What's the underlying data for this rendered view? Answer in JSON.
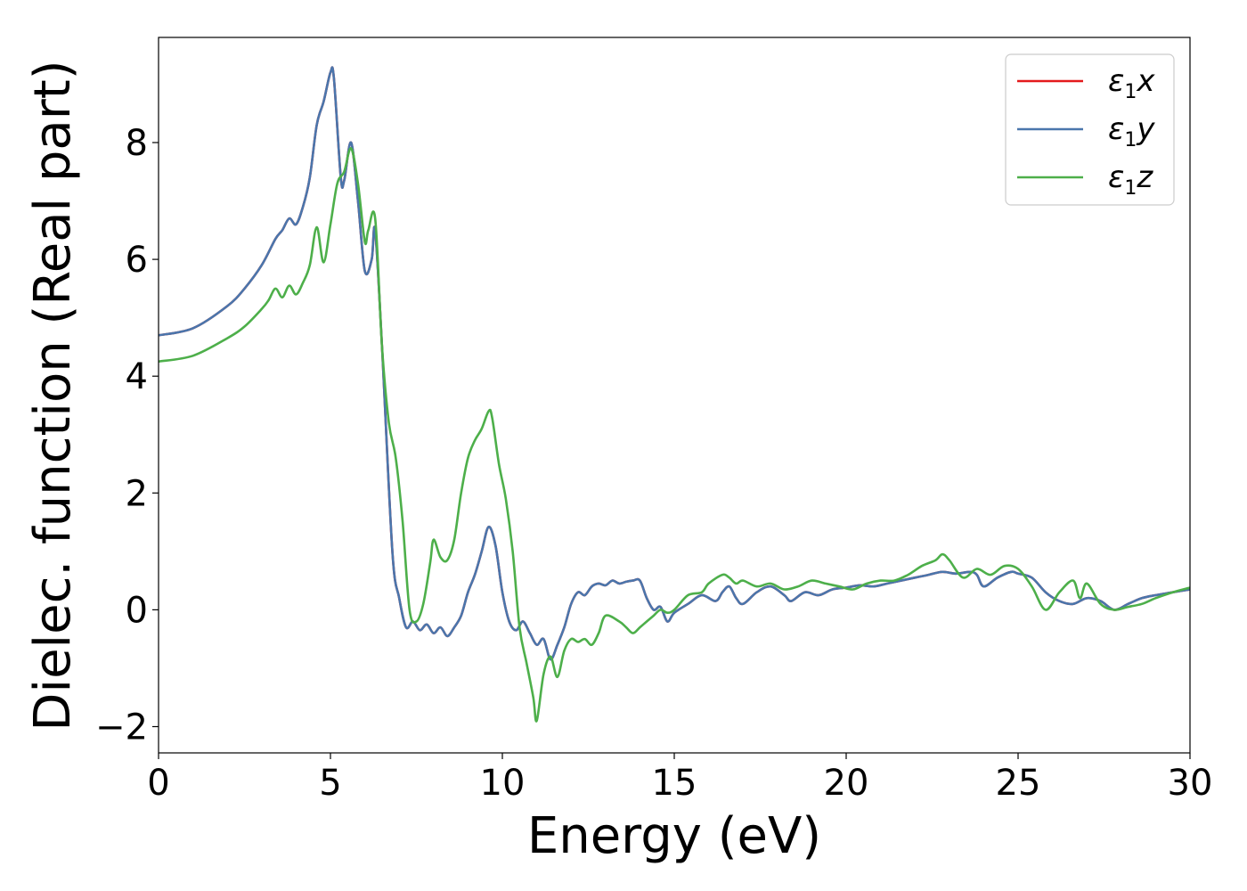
{
  "chart_data": {
    "type": "line",
    "title": "",
    "xlabel": "Energy (eV)",
    "ylabel": "Dielec. function (Real part)",
    "xlim": [
      0,
      30
    ],
    "ylim": [
      -2.45,
      9.8
    ],
    "grid": false,
    "legend_position": "top-right",
    "xticks": [
      {
        "value": 0,
        "label": "0"
      },
      {
        "value": 5,
        "label": "5"
      },
      {
        "value": 10,
        "label": "10"
      },
      {
        "value": 15,
        "label": "15"
      },
      {
        "value": 20,
        "label": "20"
      },
      {
        "value": 25,
        "label": "25"
      },
      {
        "value": 30,
        "label": "30"
      }
    ],
    "yticks": [
      {
        "value": -2,
        "label": "−2"
      },
      {
        "value": 0,
        "label": "0"
      },
      {
        "value": 2,
        "label": "2"
      },
      {
        "value": 4,
        "label": "4"
      },
      {
        "value": 6,
        "label": "6"
      },
      {
        "value": 8,
        "label": "8"
      }
    ],
    "series": [
      {
        "name": "ε1x",
        "legend_base": "ε",
        "legend_sub": "1",
        "legend_var": "x",
        "color": "#e41a1c",
        "x": [
          0,
          1,
          2,
          2.5,
          3,
          3.4,
          3.6,
          3.8,
          4.0,
          4.2,
          4.4,
          4.6,
          4.8,
          5.0,
          5.1,
          5.3,
          5.4,
          5.6,
          5.8,
          6.0,
          6.2,
          6.3,
          6.5,
          6.8,
          7.0,
          7.2,
          7.4,
          7.6,
          7.8,
          8.0,
          8.2,
          8.4,
          8.6,
          8.8,
          9.0,
          9.2,
          9.4,
          9.6,
          9.8,
          10.0,
          10.2,
          10.4,
          10.6,
          10.8,
          11.0,
          11.2,
          11.4,
          11.6,
          11.8,
          12.0,
          12.2,
          12.4,
          12.6,
          12.8,
          13.0,
          13.2,
          13.4,
          13.6,
          13.8,
          14.0,
          14.2,
          14.4,
          14.6,
          14.8,
          15.0,
          15.4,
          15.8,
          16.2,
          16.4,
          16.6,
          16.8,
          17.0,
          17.4,
          17.8,
          18.2,
          18.4,
          18.8,
          19.2,
          19.6,
          20.0,
          20.4,
          20.8,
          21.2,
          21.6,
          22.0,
          22.4,
          22.8,
          23.2,
          23.6,
          23.8,
          24.0,
          24.4,
          24.8,
          25.0,
          25.4,
          25.8,
          26.2,
          26.6,
          27.0,
          27.4,
          27.8,
          28.2,
          28.6,
          29.0,
          29.5,
          30.0
        ],
        "values": [
          4.7,
          4.82,
          5.2,
          5.5,
          5.9,
          6.35,
          6.5,
          6.7,
          6.6,
          6.9,
          7.4,
          8.3,
          8.7,
          9.2,
          9.1,
          7.4,
          7.35,
          8.0,
          7.0,
          5.8,
          6.0,
          6.5,
          4.5,
          1.0,
          0.2,
          -0.3,
          -0.2,
          -0.35,
          -0.25,
          -0.4,
          -0.3,
          -0.45,
          -0.3,
          -0.1,
          0.3,
          0.6,
          1.0,
          1.42,
          1.1,
          0.3,
          -0.2,
          -0.35,
          -0.2,
          -0.4,
          -0.6,
          -0.5,
          -0.85,
          -0.6,
          -0.3,
          0.1,
          0.3,
          0.25,
          0.4,
          0.45,
          0.42,
          0.5,
          0.45,
          0.48,
          0.5,
          0.5,
          0.2,
          0.0,
          0.05,
          -0.2,
          -0.05,
          0.1,
          0.25,
          0.15,
          0.3,
          0.4,
          0.2,
          0.1,
          0.3,
          0.4,
          0.25,
          0.15,
          0.3,
          0.25,
          0.35,
          0.38,
          0.42,
          0.4,
          0.45,
          0.5,
          0.55,
          0.6,
          0.65,
          0.62,
          0.65,
          0.6,
          0.4,
          0.55,
          0.65,
          0.62,
          0.55,
          0.3,
          0.15,
          0.1,
          0.2,
          0.15,
          0.0,
          0.1,
          0.2,
          0.25,
          0.3,
          0.35
        ]
      },
      {
        "name": "ε1y",
        "legend_base": "ε",
        "legend_sub": "1",
        "legend_var": "y",
        "color": "#4a76ac",
        "x": [
          0,
          1,
          2,
          2.5,
          3,
          3.4,
          3.6,
          3.8,
          4.0,
          4.2,
          4.4,
          4.6,
          4.8,
          5.0,
          5.1,
          5.3,
          5.4,
          5.6,
          5.8,
          6.0,
          6.2,
          6.3,
          6.5,
          6.8,
          7.0,
          7.2,
          7.4,
          7.6,
          7.8,
          8.0,
          8.2,
          8.4,
          8.6,
          8.8,
          9.0,
          9.2,
          9.4,
          9.6,
          9.8,
          10.0,
          10.2,
          10.4,
          10.6,
          10.8,
          11.0,
          11.2,
          11.4,
          11.6,
          11.8,
          12.0,
          12.2,
          12.4,
          12.6,
          12.8,
          13.0,
          13.2,
          13.4,
          13.6,
          13.8,
          14.0,
          14.2,
          14.4,
          14.6,
          14.8,
          15.0,
          15.4,
          15.8,
          16.2,
          16.4,
          16.6,
          16.8,
          17.0,
          17.4,
          17.8,
          18.2,
          18.4,
          18.8,
          19.2,
          19.6,
          20.0,
          20.4,
          20.8,
          21.2,
          21.6,
          22.0,
          22.4,
          22.8,
          23.2,
          23.6,
          23.8,
          24.0,
          24.4,
          24.8,
          25.0,
          25.4,
          25.8,
          26.2,
          26.6,
          27.0,
          27.4,
          27.8,
          28.2,
          28.6,
          29.0,
          29.5,
          30.0
        ],
        "values": [
          4.7,
          4.82,
          5.2,
          5.5,
          5.9,
          6.35,
          6.5,
          6.7,
          6.6,
          6.9,
          7.4,
          8.3,
          8.7,
          9.2,
          9.1,
          7.4,
          7.35,
          8.0,
          7.0,
          5.8,
          6.0,
          6.5,
          4.5,
          1.0,
          0.2,
          -0.3,
          -0.2,
          -0.35,
          -0.25,
          -0.4,
          -0.3,
          -0.45,
          -0.3,
          -0.1,
          0.3,
          0.6,
          1.0,
          1.42,
          1.1,
          0.3,
          -0.2,
          -0.35,
          -0.2,
          -0.4,
          -0.6,
          -0.5,
          -0.85,
          -0.6,
          -0.3,
          0.1,
          0.3,
          0.25,
          0.4,
          0.45,
          0.42,
          0.5,
          0.45,
          0.48,
          0.5,
          0.5,
          0.2,
          0.0,
          0.05,
          -0.2,
          -0.05,
          0.1,
          0.25,
          0.15,
          0.3,
          0.4,
          0.2,
          0.1,
          0.3,
          0.4,
          0.25,
          0.15,
          0.3,
          0.25,
          0.35,
          0.38,
          0.42,
          0.4,
          0.45,
          0.5,
          0.55,
          0.6,
          0.65,
          0.62,
          0.65,
          0.6,
          0.4,
          0.55,
          0.65,
          0.62,
          0.55,
          0.3,
          0.15,
          0.1,
          0.2,
          0.15,
          0.0,
          0.1,
          0.2,
          0.25,
          0.3,
          0.35
        ]
      },
      {
        "name": "ε1z",
        "legend_base": "ε",
        "legend_sub": "1",
        "legend_var": "z",
        "color": "#4daf4a",
        "x": [
          0,
          1,
          2,
          2.5,
          3,
          3.2,
          3.4,
          3.6,
          3.8,
          4.0,
          4.2,
          4.4,
          4.6,
          4.8,
          5.0,
          5.2,
          5.4,
          5.6,
          5.8,
          6.0,
          6.1,
          6.3,
          6.5,
          6.7,
          6.9,
          7.1,
          7.3,
          7.5,
          7.7,
          7.9,
          8.0,
          8.2,
          8.4,
          8.6,
          8.8,
          9.0,
          9.2,
          9.4,
          9.6,
          9.7,
          9.9,
          10.1,
          10.3,
          10.5,
          10.7,
          10.9,
          11.0,
          11.2,
          11.4,
          11.6,
          11.8,
          12.0,
          12.2,
          12.4,
          12.6,
          12.8,
          13.0,
          13.4,
          13.6,
          13.8,
          14.0,
          14.2,
          14.4,
          14.6,
          14.8,
          15.0,
          15.4,
          15.8,
          16.0,
          16.4,
          16.6,
          16.8,
          17.0,
          17.4,
          17.8,
          18.2,
          18.6,
          19.0,
          19.4,
          19.8,
          20.2,
          20.6,
          21.0,
          21.4,
          21.8,
          22.2,
          22.6,
          22.8,
          23.0,
          23.4,
          23.8,
          24.2,
          24.6,
          25.0,
          25.4,
          25.8,
          26.2,
          26.6,
          26.8,
          27.0,
          27.4,
          27.8,
          28.2,
          28.6,
          29.0,
          29.5,
          30.0
        ],
        "values": [
          4.25,
          4.35,
          4.65,
          4.85,
          5.15,
          5.3,
          5.5,
          5.35,
          5.55,
          5.4,
          5.6,
          5.9,
          6.55,
          5.95,
          6.6,
          7.3,
          7.5,
          7.9,
          7.3,
          6.3,
          6.5,
          6.7,
          4.5,
          3.2,
          2.6,
          1.5,
          0.0,
          -0.2,
          0.1,
          0.8,
          1.2,
          0.9,
          0.85,
          1.2,
          2.0,
          2.6,
          2.9,
          3.1,
          3.4,
          3.3,
          2.5,
          1.9,
          1.0,
          -0.3,
          -0.9,
          -1.5,
          -1.9,
          -1.1,
          -0.8,
          -1.15,
          -0.7,
          -0.5,
          -0.55,
          -0.5,
          -0.6,
          -0.4,
          -0.1,
          -0.2,
          -0.3,
          -0.4,
          -0.3,
          -0.2,
          -0.1,
          0.0,
          -0.05,
          0.0,
          0.25,
          0.3,
          0.45,
          0.6,
          0.55,
          0.45,
          0.5,
          0.4,
          0.45,
          0.35,
          0.4,
          0.5,
          0.45,
          0.4,
          0.35,
          0.45,
          0.5,
          0.5,
          0.6,
          0.75,
          0.85,
          0.95,
          0.85,
          0.55,
          0.7,
          0.6,
          0.75,
          0.7,
          0.4,
          0.0,
          0.3,
          0.5,
          0.2,
          0.45,
          0.1,
          0.0,
          0.05,
          0.1,
          0.2,
          0.3,
          0.38
        ]
      }
    ]
  }
}
